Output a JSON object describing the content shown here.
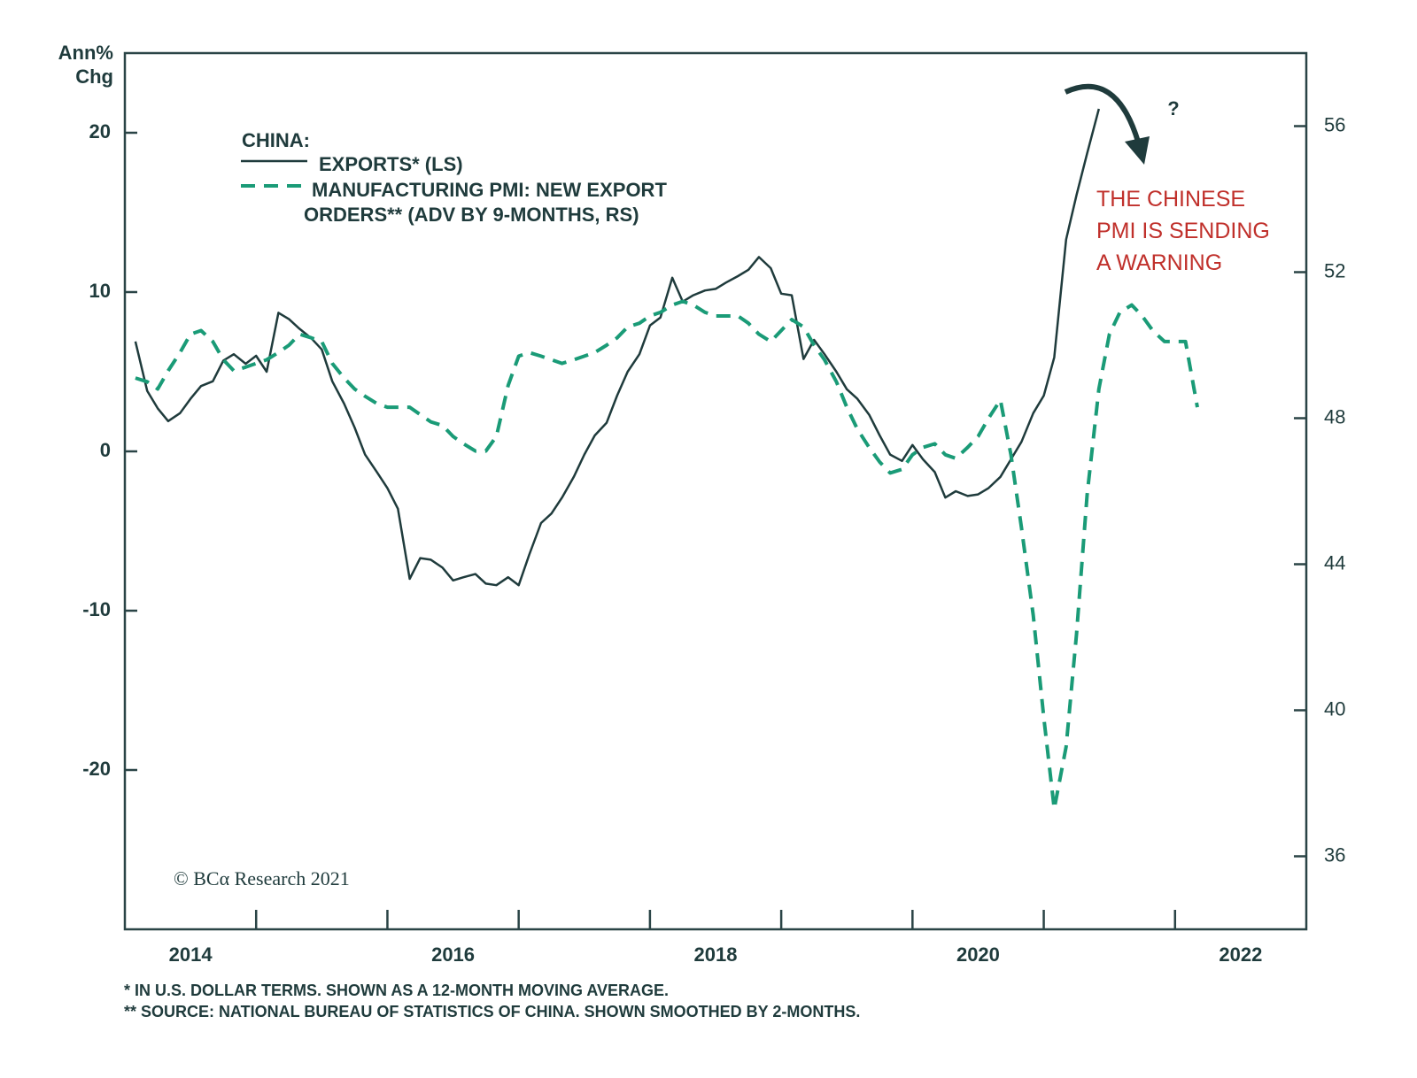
{
  "chart_data": {
    "type": "line",
    "y_label": "Ann% Chg",
    "legend_title": "CHINA:",
    "annotation_lines": [
      "THE CHINESE",
      "PMI IS SENDING",
      "A WARNING"
    ],
    "annotation_mark": "?",
    "copyright": "© BCα Research 2021",
    "footnotes": [
      "* IN U.S. DOLLAR TERMS. SHOWN AS A 12-MONTH MOVING AVERAGE.",
      "** SOURCE: NATIONAL BUREAU OF STATISTICS OF CHINA. SHOWN SMOOTHED BY 2-MONTHS."
    ],
    "xlim": [
      2014,
      2023
    ],
    "xticks": [
      {
        "value": 2014.5,
        "label": "2014"
      },
      {
        "value": 2016.5,
        "label": "2016"
      },
      {
        "value": 2018.5,
        "label": "2018"
      },
      {
        "value": 2020.5,
        "label": "2020"
      },
      {
        "value": 2022.5,
        "label": "2022"
      }
    ],
    "x_minor_ticks": [
      2015,
      2016,
      2017,
      2018,
      2019,
      2020,
      2021,
      2022
    ],
    "ylim": [
      -30,
      25
    ],
    "yticks": [
      -20,
      -10,
      0,
      10,
      20
    ],
    "y2lim": [
      34,
      58
    ],
    "y2ticks": [
      36,
      40,
      44,
      48,
      52,
      56
    ],
    "x": [
      2014.08,
      2014.17,
      2014.25,
      2014.33,
      2014.42,
      2014.5,
      2014.58,
      2014.67,
      2014.75,
      2014.83,
      2014.92,
      2015,
      2015.08,
      2015.17,
      2015.25,
      2015.33,
      2015.42,
      2015.5,
      2015.58,
      2015.67,
      2015.75,
      2015.83,
      2015.92,
      2016,
      2016.08,
      2016.17,
      2016.25,
      2016.33,
      2016.42,
      2016.5,
      2016.58,
      2016.67,
      2016.75,
      2016.83,
      2016.92,
      2017,
      2017.08,
      2017.17,
      2017.25,
      2017.33,
      2017.42,
      2017.5,
      2017.58,
      2017.67,
      2017.75,
      2017.83,
      2017.92,
      2018,
      2018.08,
      2018.17,
      2018.25,
      2018.33,
      2018.42,
      2018.5,
      2018.58,
      2018.67,
      2018.75,
      2018.83,
      2018.92,
      2019,
      2019.08,
      2019.17,
      2019.25,
      2019.33,
      2019.42,
      2019.5,
      2019.58,
      2019.67,
      2019.75,
      2019.83,
      2019.92,
      2020,
      2020.08,
      2020.17,
      2020.25,
      2020.33,
      2020.42,
      2020.5,
      2020.58,
      2020.67,
      2020.75,
      2020.83,
      2020.92,
      2021,
      2021.08,
      2021.17,
      2021.25,
      2021.33,
      2021.42,
      2021.5,
      2021.58,
      2021.67,
      2021.75,
      2021.83,
      2021.92,
      2022,
      2022.08,
      2022.17
    ],
    "series": [
      {
        "name": "EXPORTS* (LS)",
        "color": "#1f3b3c",
        "axis": "y",
        "style": "solid",
        "values": [
          6.9,
          3.8,
          2.7,
          1.9,
          2.4,
          3.3,
          4.1,
          4.4,
          5.7,
          6.1,
          5.5,
          6.0,
          5.0,
          8.7,
          8.3,
          7.7,
          7.1,
          6.4,
          4.4,
          3.0,
          1.5,
          -0.2,
          -1.3,
          -2.3,
          -3.6,
          -8.0,
          -6.7,
          -6.8,
          -7.3,
          -8.1,
          -7.9,
          -7.7,
          -8.3,
          -8.4,
          -7.9,
          -8.4,
          -6.5,
          -4.5,
          -3.9,
          -2.9,
          -1.6,
          -0.2,
          1.0,
          1.8,
          3.5,
          5.0,
          6.1,
          7.9,
          8.4,
          10.9,
          9.4,
          9.8,
          10.1,
          10.2,
          10.6,
          11.0,
          11.4,
          12.2,
          11.5,
          9.9,
          9.8,
          5.8,
          7.0,
          6.1,
          5.0,
          3.9,
          3.3,
          2.3,
          1.0,
          -0.2,
          -0.6,
          0.4,
          -0.5,
          -1.3,
          -2.9,
          -2.5,
          -2.8,
          -2.7,
          -2.3,
          -1.6,
          -0.5,
          0.6,
          2.4,
          3.5,
          5.9,
          13.3,
          16.1,
          18.7,
          21.5,
          null,
          null,
          null,
          null,
          null,
          null,
          null,
          null,
          null
        ]
      },
      {
        "name": "MANUFACTURING PMI: NEW EXPORT ORDERS** (ADV BY 9-MONTHS, RS)",
        "color": "#1a9b77",
        "axis": "y2",
        "style": "dashed",
        "values": [
          49.1,
          49.0,
          48.8,
          49.3,
          49.8,
          50.3,
          50.4,
          50.1,
          49.6,
          49.3,
          49.4,
          49.5,
          49.6,
          49.8,
          50.0,
          50.3,
          50.2,
          50.1,
          49.5,
          49.1,
          48.8,
          48.6,
          48.4,
          48.3,
          48.3,
          48.3,
          48.1,
          47.9,
          47.8,
          47.5,
          47.3,
          47.1,
          47.1,
          47.5,
          48.9,
          49.7,
          49.8,
          49.7,
          49.6,
          49.5,
          49.6,
          49.7,
          49.8,
          50.0,
          50.2,
          50.5,
          50.6,
          50.8,
          50.9,
          51.1,
          51.2,
          51.1,
          50.9,
          50.8,
          50.8,
          50.8,
          50.6,
          50.3,
          50.1,
          50.4,
          50.7,
          50.5,
          50.0,
          49.6,
          49.0,
          48.3,
          47.7,
          47.2,
          46.8,
          46.5,
          46.6,
          47.0,
          47.2,
          47.3,
          47.0,
          46.9,
          47.2,
          47.5,
          48.0,
          48.5,
          47.0,
          45.0,
          42.6,
          39.8,
          37.3,
          39.0,
          42.1,
          45.9,
          48.8,
          50.3,
          50.9,
          51.1,
          50.8,
          50.4,
          50.1,
          50.1,
          50.1,
          48.3
        ]
      }
    ]
  }
}
